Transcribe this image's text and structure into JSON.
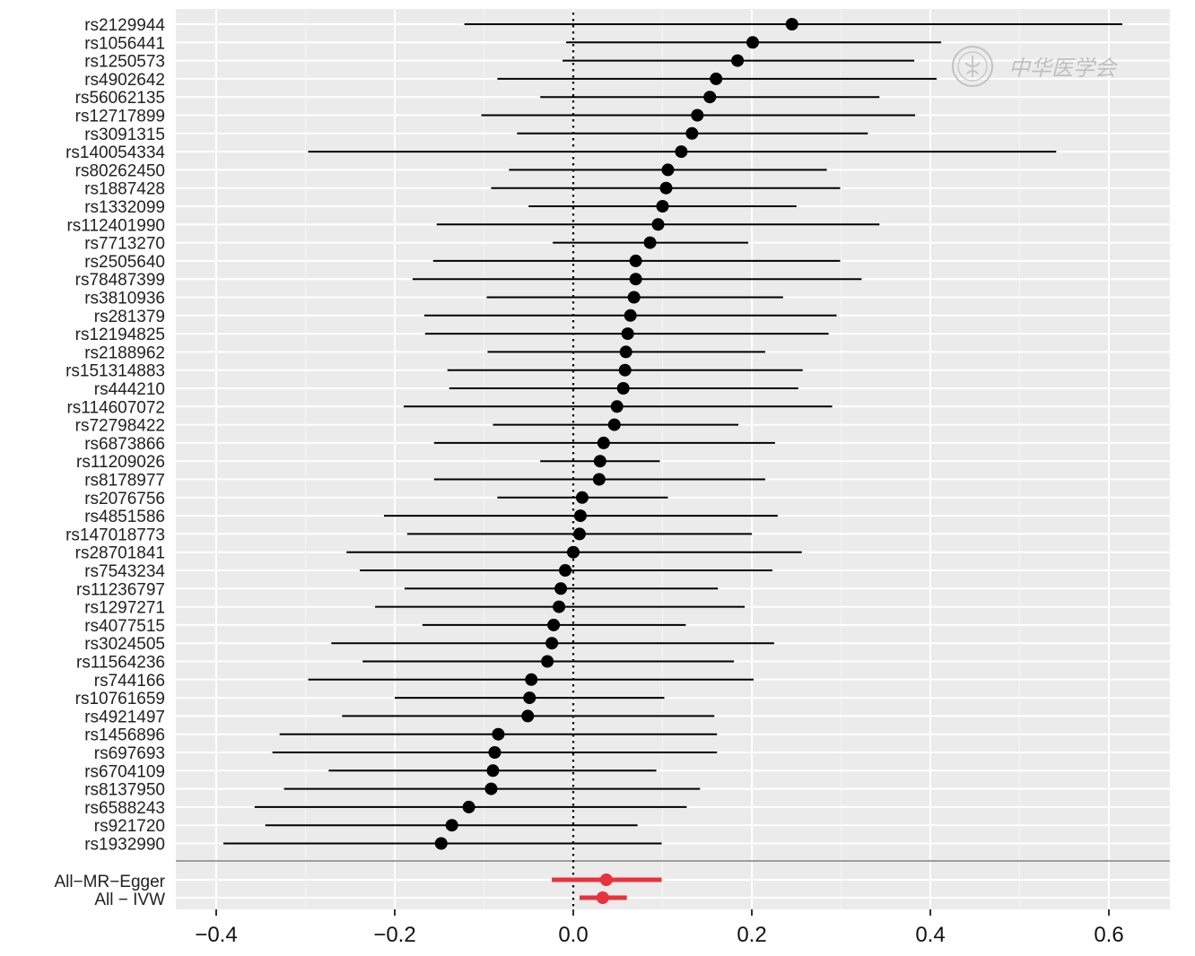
{
  "chart_data": {
    "type": "forest",
    "title": "",
    "xlabel": "",
    "ylabel": "",
    "xlim": [
      -0.44,
      0.67
    ],
    "x_ticks": [
      -0.4,
      -0.2,
      0.0,
      0.2,
      0.4,
      0.6
    ],
    "x_tick_labels": [
      "−0.4",
      "−0.2",
      "0.0",
      "0.2",
      "0.4",
      "0.6"
    ],
    "reference_line": 0.0,
    "grid": true,
    "snp_color": "#000000",
    "summary_color": "#e8323c",
    "panel_color": "#ebebeb",
    "snps": [
      {
        "label": "rs2129944",
        "estimate": 0.245,
        "lower": -0.122,
        "upper": 0.615
      },
      {
        "label": "rs1056441",
        "estimate": 0.201,
        "lower": -0.008,
        "upper": 0.412
      },
      {
        "label": "rs1250573",
        "estimate": 0.184,
        "lower": -0.012,
        "upper": 0.382
      },
      {
        "label": "rs4902642",
        "estimate": 0.16,
        "lower": -0.085,
        "upper": 0.407
      },
      {
        "label": "rs56062135",
        "estimate": 0.153,
        "lower": -0.037,
        "upper": 0.343
      },
      {
        "label": "rs12717899",
        "estimate": 0.139,
        "lower": -0.103,
        "upper": 0.383
      },
      {
        "label": "rs3091315",
        "estimate": 0.133,
        "lower": -0.063,
        "upper": 0.33
      },
      {
        "label": "rs140054334",
        "estimate": 0.121,
        "lower": -0.297,
        "upper": 0.541
      },
      {
        "label": "rs80262450",
        "estimate": 0.106,
        "lower": -0.072,
        "upper": 0.284
      },
      {
        "label": "rs1887428",
        "estimate": 0.104,
        "lower": -0.092,
        "upper": 0.299
      },
      {
        "label": "rs1332099",
        "estimate": 0.1,
        "lower": -0.05,
        "upper": 0.25
      },
      {
        "label": "rs112401990",
        "estimate": 0.095,
        "lower": -0.153,
        "upper": 0.343
      },
      {
        "label": "rs7713270",
        "estimate": 0.086,
        "lower": -0.023,
        "upper": 0.196
      },
      {
        "label": "rs2505640",
        "estimate": 0.07,
        "lower": -0.157,
        "upper": 0.299
      },
      {
        "label": "rs78487399",
        "estimate": 0.07,
        "lower": -0.18,
        "upper": 0.323
      },
      {
        "label": "rs3810936",
        "estimate": 0.068,
        "lower": -0.097,
        "upper": 0.235
      },
      {
        "label": "rs281379",
        "estimate": 0.064,
        "lower": -0.167,
        "upper": 0.295
      },
      {
        "label": "rs12194825",
        "estimate": 0.061,
        "lower": -0.166,
        "upper": 0.286
      },
      {
        "label": "rs2188962",
        "estimate": 0.059,
        "lower": -0.096,
        "upper": 0.215
      },
      {
        "label": "rs151314883",
        "estimate": 0.058,
        "lower": -0.141,
        "upper": 0.257
      },
      {
        "label": "rs444210",
        "estimate": 0.056,
        "lower": -0.139,
        "upper": 0.252
      },
      {
        "label": "rs114607072",
        "estimate": 0.049,
        "lower": -0.19,
        "upper": 0.29
      },
      {
        "label": "rs72798422",
        "estimate": 0.046,
        "lower": -0.09,
        "upper": 0.185
      },
      {
        "label": "rs6873866",
        "estimate": 0.034,
        "lower": -0.156,
        "upper": 0.226
      },
      {
        "label": "rs11209026",
        "estimate": 0.03,
        "lower": -0.037,
        "upper": 0.097
      },
      {
        "label": "rs8178977",
        "estimate": 0.029,
        "lower": -0.156,
        "upper": 0.215
      },
      {
        "label": "rs2076756",
        "estimate": 0.01,
        "lower": -0.085,
        "upper": 0.106
      },
      {
        "label": "rs4851586",
        "estimate": 0.008,
        "lower": -0.212,
        "upper": 0.229
      },
      {
        "label": "rs147018773",
        "estimate": 0.007,
        "lower": -0.186,
        "upper": 0.2
      },
      {
        "label": "rs28701841",
        "estimate": 0.0,
        "lower": -0.254,
        "upper": 0.256
      },
      {
        "label": "rs7543234",
        "estimate": -0.009,
        "lower": -0.239,
        "upper": 0.223
      },
      {
        "label": "rs11236797",
        "estimate": -0.014,
        "lower": -0.189,
        "upper": 0.162
      },
      {
        "label": "rs1297271",
        "estimate": -0.016,
        "lower": -0.222,
        "upper": 0.192
      },
      {
        "label": "rs4077515",
        "estimate": -0.022,
        "lower": -0.169,
        "upper": 0.126
      },
      {
        "label": "rs3024505",
        "estimate": -0.024,
        "lower": -0.271,
        "upper": 0.225
      },
      {
        "label": "rs11564236",
        "estimate": -0.029,
        "lower": -0.236,
        "upper": 0.18
      },
      {
        "label": "rs744166",
        "estimate": -0.047,
        "lower": -0.297,
        "upper": 0.202
      },
      {
        "label": "rs10761659",
        "estimate": -0.049,
        "lower": -0.2,
        "upper": 0.102
      },
      {
        "label": "rs4921497",
        "estimate": -0.051,
        "lower": -0.259,
        "upper": 0.158
      },
      {
        "label": "rs1456896",
        "estimate": -0.084,
        "lower": -0.329,
        "upper": 0.161
      },
      {
        "label": "rs697693",
        "estimate": -0.088,
        "lower": -0.337,
        "upper": 0.161
      },
      {
        "label": "rs6704109",
        "estimate": -0.09,
        "lower": -0.274,
        "upper": 0.093
      },
      {
        "label": "rs8137950",
        "estimate": -0.092,
        "lower": -0.324,
        "upper": 0.142
      },
      {
        "label": "rs6588243",
        "estimate": -0.117,
        "lower": -0.357,
        "upper": 0.127
      },
      {
        "label": "rs921720",
        "estimate": -0.136,
        "lower": -0.345,
        "upper": 0.072
      },
      {
        "label": "rs1932990",
        "estimate": -0.148,
        "lower": -0.392,
        "upper": 0.099
      }
    ],
    "summaries": [
      {
        "label": "All−MR−Egger",
        "estimate": 0.037,
        "lower": -0.024,
        "upper": 0.099
      },
      {
        "label": "All − IVW",
        "estimate": 0.033,
        "lower": 0.007,
        "upper": 0.06
      }
    ]
  },
  "watermark": {
    "text": "中华医学会",
    "icon": "society-seal-icon"
  }
}
